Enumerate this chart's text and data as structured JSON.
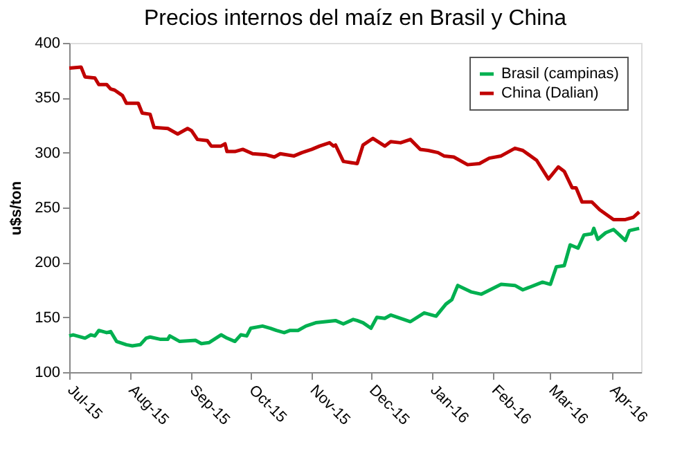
{
  "chart_data": {
    "type": "line",
    "title": "Precios internos del maíz en Brasil y China",
    "ylabel": "u$s/ton",
    "ylim": [
      100,
      400
    ],
    "yticks": [
      100,
      150,
      200,
      250,
      300,
      350,
      400
    ],
    "xlim": [
      "2015-07-01",
      "2016-04-16"
    ],
    "xticks": [
      {
        "value": "2015-07-01",
        "label": "Jul-15"
      },
      {
        "value": "2015-08-01",
        "label": "Aug-15"
      },
      {
        "value": "2015-09-01",
        "label": "Sep-15"
      },
      {
        "value": "2015-10-01",
        "label": "Oct-15"
      },
      {
        "value": "2015-11-01",
        "label": "Nov-15"
      },
      {
        "value": "2015-12-01",
        "label": "Dec-15"
      },
      {
        "value": "2016-01-01",
        "label": "Jan-16"
      },
      {
        "value": "2016-02-01",
        "label": "Feb-16"
      },
      {
        "value": "2016-03-01",
        "label": "Mar-16"
      },
      {
        "value": "2016-04-01",
        "label": "Apr-16"
      }
    ],
    "grid": false,
    "legend": "top right",
    "line_style": "solid",
    "marker": "none",
    "series": [
      {
        "name": "Brasil (campinas)",
        "color": "#00b050",
        "x": [
          "2015-07-01",
          "2015-07-03",
          "2015-07-09",
          "2015-07-12",
          "2015-07-14",
          "2015-07-16",
          "2015-07-20",
          "2015-07-22",
          "2015-07-25",
          "2015-07-30",
          "2015-08-02",
          "2015-08-06",
          "2015-08-09",
          "2015-08-11",
          "2015-08-16",
          "2015-08-20",
          "2015-08-21",
          "2015-08-26",
          "2015-09-03",
          "2015-09-06",
          "2015-09-10",
          "2015-09-16",
          "2015-09-19",
          "2015-09-23",
          "2015-09-26",
          "2015-09-29",
          "2015-10-01",
          "2015-10-07",
          "2015-10-11",
          "2015-10-14",
          "2015-10-18",
          "2015-10-21",
          "2015-10-25",
          "2015-10-29",
          "2015-11-03",
          "2015-11-08",
          "2015-11-13",
          "2015-11-17",
          "2015-11-22",
          "2015-11-24",
          "2015-11-27",
          "2015-12-01",
          "2015-12-04",
          "2015-12-08",
          "2015-12-11",
          "2015-12-21",
          "2015-12-28",
          "2016-01-03",
          "2016-01-08",
          "2016-01-11",
          "2016-01-14",
          "2016-01-21",
          "2016-01-26",
          "2016-02-05",
          "2016-02-12",
          "2016-02-16",
          "2016-02-26",
          "2016-03-01",
          "2016-03-04",
          "2016-03-08",
          "2016-03-11",
          "2016-03-15",
          "2016-03-18",
          "2016-03-22",
          "2016-03-23",
          "2016-03-25",
          "2016-03-29",
          "2016-04-02",
          "2016-04-05",
          "2016-04-08",
          "2016-04-10",
          "2016-04-15"
        ],
        "values": [
          133,
          134,
          131,
          134,
          133,
          138,
          136,
          137,
          128,
          125,
          124,
          125,
          131,
          132,
          130,
          130,
          133,
          128,
          129,
          126,
          127,
          134,
          131,
          128,
          134,
          133,
          140,
          142,
          140,
          138,
          136,
          138,
          138,
          142,
          145,
          146,
          147,
          144,
          148,
          147,
          145,
          140,
          150,
          149,
          152,
          146,
          154,
          151,
          162,
          166,
          179,
          173,
          171,
          180,
          179,
          175,
          182,
          180,
          196,
          197,
          216,
          213,
          225,
          226,
          231,
          221,
          227,
          230,
          225,
          220,
          229,
          231
        ]
      },
      {
        "name": "China (Dalian)",
        "color": "#c00000",
        "x": [
          "2015-07-01",
          "2015-07-07",
          "2015-07-09",
          "2015-07-14",
          "2015-07-16",
          "2015-07-20",
          "2015-07-22",
          "2015-07-24",
          "2015-07-28",
          "2015-07-30",
          "2015-08-05",
          "2015-08-07",
          "2015-08-11",
          "2015-08-13",
          "2015-08-20",
          "2015-08-25",
          "2015-08-30",
          "2015-09-01",
          "2015-09-04",
          "2015-09-09",
          "2015-09-11",
          "2015-09-16",
          "2015-09-18",
          "2015-09-19",
          "2015-09-23",
          "2015-09-27",
          "2015-10-02",
          "2015-10-09",
          "2015-10-13",
          "2015-10-16",
          "2015-10-23",
          "2015-10-27",
          "2015-11-01",
          "2015-11-05",
          "2015-11-10",
          "2015-11-12",
          "2015-11-13",
          "2015-11-17",
          "2015-11-24",
          "2015-11-27",
          "2015-12-02",
          "2015-12-08",
          "2015-12-11",
          "2015-12-16",
          "2015-12-21",
          "2015-12-26",
          "2015-12-30",
          "2016-01-04",
          "2016-01-07",
          "2016-01-12",
          "2016-01-19",
          "2016-01-25",
          "2016-01-30",
          "2016-02-05",
          "2016-02-12",
          "2016-02-16",
          "2016-02-23",
          "2016-02-29",
          "2016-03-05",
          "2016-03-08",
          "2016-03-12",
          "2016-03-14",
          "2016-03-17",
          "2016-03-22",
          "2016-03-26",
          "2016-04-02",
          "2016-04-08",
          "2016-04-12",
          "2016-04-15"
        ],
        "values": [
          377,
          378,
          369,
          368,
          362,
          362,
          358,
          357,
          352,
          345,
          345,
          336,
          335,
          323,
          322,
          317,
          322,
          320,
          312,
          311,
          306,
          306,
          308,
          301,
          301,
          303,
          299,
          298,
          296,
          299,
          297,
          300,
          303,
          306,
          309,
          306,
          307,
          292,
          290,
          307,
          313,
          306,
          310,
          309,
          312,
          303,
          302,
          300,
          297,
          296,
          289,
          290,
          295,
          297,
          304,
          302,
          293,
          276,
          287,
          283,
          268,
          268,
          255,
          255,
          248,
          239,
          239,
          241,
          246
        ]
      }
    ]
  }
}
